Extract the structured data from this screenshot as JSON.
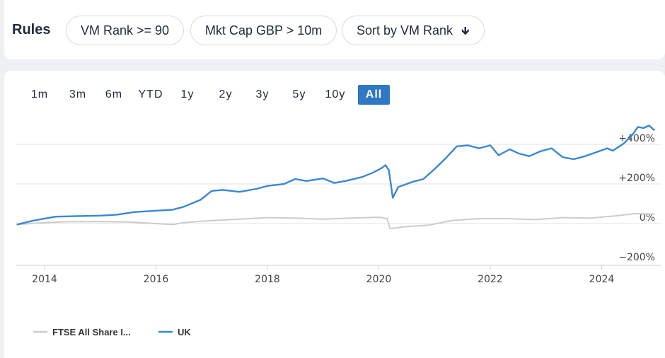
{
  "rules": {
    "title": "Rules",
    "filters": [
      {
        "label": "VM Rank >= 90"
      },
      {
        "label": "Mkt Cap GBP > 10m"
      },
      {
        "label": "Sort by VM Rank",
        "arrow": "🠗"
      }
    ]
  },
  "range_buttons": [
    "1m",
    "3m",
    "6m",
    "YTD",
    "1y",
    "2y",
    "3y",
    "5y",
    "10y",
    "All"
  ],
  "active_range": "All",
  "colors": {
    "uk": "#3a87d6",
    "ftse": "#cccccc",
    "active_button": "#2f78c4"
  },
  "chart_data": {
    "type": "line",
    "x_ticks": [
      "2014",
      "2016",
      "2018",
      "2020",
      "2022",
      "2024"
    ],
    "y_ticks": [
      "+400%",
      "+200%",
      "0%",
      "−200%"
    ],
    "ylim": [
      -220,
      480
    ],
    "xlim": [
      2013.5,
      2024.95
    ],
    "grid": true,
    "legend_position": "bottom-left",
    "series": [
      {
        "name": "FTSE All Share I...",
        "color": "#cccccc",
        "points": [
          [
            2013.5,
            -5
          ],
          [
            2014.0,
            5
          ],
          [
            2014.5,
            10
          ],
          [
            2015.0,
            10
          ],
          [
            2015.5,
            8
          ],
          [
            2016.0,
            0
          ],
          [
            2016.3,
            -5
          ],
          [
            2016.5,
            5
          ],
          [
            2017.0,
            15
          ],
          [
            2017.5,
            22
          ],
          [
            2018.0,
            30
          ],
          [
            2018.5,
            28
          ],
          [
            2019.0,
            22
          ],
          [
            2019.5,
            28
          ],
          [
            2020.0,
            32
          ],
          [
            2020.15,
            25
          ],
          [
            2020.2,
            -25
          ],
          [
            2020.5,
            -15
          ],
          [
            2020.9,
            -8
          ],
          [
            2021.3,
            15
          ],
          [
            2021.8,
            25
          ],
          [
            2022.3,
            25
          ],
          [
            2022.8,
            20
          ],
          [
            2023.3,
            30
          ],
          [
            2023.8,
            28
          ],
          [
            2024.3,
            40
          ],
          [
            2024.6,
            50
          ],
          [
            2024.95,
            48
          ]
        ]
      },
      {
        "name": "UK",
        "color": "#3a87d6",
        "points": [
          [
            2013.5,
            -5
          ],
          [
            2013.8,
            15
          ],
          [
            2014.2,
            35
          ],
          [
            2014.6,
            38
          ],
          [
            2015.0,
            40
          ],
          [
            2015.3,
            45
          ],
          [
            2015.6,
            58
          ],
          [
            2016.0,
            65
          ],
          [
            2016.3,
            70
          ],
          [
            2016.5,
            85
          ],
          [
            2016.8,
            120
          ],
          [
            2017.0,
            165
          ],
          [
            2017.2,
            170
          ],
          [
            2017.5,
            160
          ],
          [
            2017.8,
            175
          ],
          [
            2018.0,
            190
          ],
          [
            2018.3,
            200
          ],
          [
            2018.5,
            225
          ],
          [
            2018.7,
            215
          ],
          [
            2019.0,
            228
          ],
          [
            2019.2,
            205
          ],
          [
            2019.4,
            215
          ],
          [
            2019.7,
            235
          ],
          [
            2019.9,
            258
          ],
          [
            2020.05,
            280
          ],
          [
            2020.12,
            295
          ],
          [
            2020.18,
            270
          ],
          [
            2020.25,
            130
          ],
          [
            2020.35,
            185
          ],
          [
            2020.6,
            210
          ],
          [
            2020.8,
            225
          ],
          [
            2021.0,
            275
          ],
          [
            2021.2,
            330
          ],
          [
            2021.4,
            390
          ],
          [
            2021.6,
            395
          ],
          [
            2021.8,
            380
          ],
          [
            2022.0,
            395
          ],
          [
            2022.15,
            345
          ],
          [
            2022.35,
            375
          ],
          [
            2022.5,
            355
          ],
          [
            2022.7,
            340
          ],
          [
            2022.9,
            365
          ],
          [
            2023.1,
            380
          ],
          [
            2023.3,
            335
          ],
          [
            2023.5,
            325
          ],
          [
            2023.7,
            340
          ],
          [
            2023.9,
            360
          ],
          [
            2024.1,
            380
          ],
          [
            2024.2,
            368
          ],
          [
            2024.4,
            405
          ],
          [
            2024.55,
            448
          ],
          [
            2024.65,
            488
          ],
          [
            2024.75,
            482
          ],
          [
            2024.85,
            495
          ],
          [
            2024.95,
            470
          ]
        ]
      }
    ]
  }
}
